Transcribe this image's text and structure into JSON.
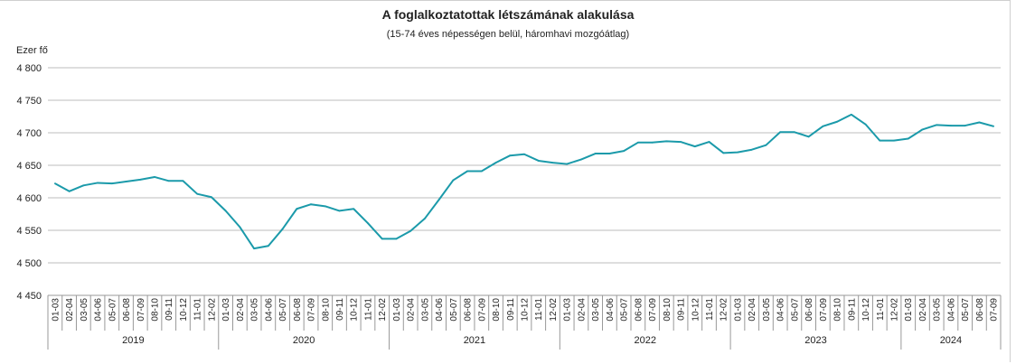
{
  "chart_data": {
    "type": "line",
    "title": "A foglalkoztatottak létszámának alakulása",
    "subtitle": "(15-74 éves népességen belül, háromhavi mozgóátlag)",
    "ylabel": "Ezer fő",
    "ylim": [
      4450,
      4800
    ],
    "yticks": [
      4450,
      4500,
      4550,
      4600,
      4650,
      4700,
      4750,
      4800
    ],
    "ytick_labels": [
      "4 450",
      "4 500",
      "4 550",
      "4 600",
      "4 650",
      "4 700",
      "4 750",
      "4 800"
    ],
    "grid": true,
    "line_color": "#1b9aaa",
    "categories": [
      "01-03",
      "02-04",
      "03-05",
      "04-06",
      "05-07",
      "06-08",
      "07-09",
      "08-10",
      "09-11",
      "10-12",
      "11-01",
      "12-02",
      "01-03",
      "02-04",
      "03-05",
      "04-06",
      "05-07",
      "06-08",
      "07-09",
      "08-10",
      "09-11",
      "10-12",
      "11-01",
      "12-02",
      "01-03",
      "02-04",
      "03-05",
      "04-06",
      "05-07",
      "06-08",
      "07-09",
      "08-10",
      "09-11",
      "10-12",
      "11-01",
      "12-02",
      "01-03",
      "02-04",
      "03-05",
      "04-06",
      "05-07",
      "06-08",
      "07-09",
      "08-10",
      "09-11",
      "10-12",
      "11-01",
      "12-02",
      "01-03",
      "02-04",
      "03-05",
      "04-06",
      "05-07",
      "06-08",
      "07-09",
      "08-10",
      "09-11",
      "10-12",
      "11-01",
      "12-02",
      "01-03",
      "02-04",
      "03-05",
      "04-06",
      "05-07",
      "06-08",
      "07-09"
    ],
    "years": [
      {
        "label": "2019",
        "count": 12
      },
      {
        "label": "2020",
        "count": 12
      },
      {
        "label": "2021",
        "count": 12
      },
      {
        "label": "2022",
        "count": 12
      },
      {
        "label": "2023",
        "count": 12
      },
      {
        "label": "2024",
        "count": 7
      }
    ],
    "values": [
      4622,
      4610,
      4619,
      4623,
      4622,
      4625,
      4628,
      4632,
      4626,
      4626,
      4606,
      4601,
      4580,
      4555,
      4522,
      4526,
      4552,
      4583,
      4590,
      4587,
      4580,
      4583,
      4561,
      4537,
      4537,
      4549,
      4568,
      4597,
      4627,
      4641,
      4641,
      4654,
      4665,
      4667,
      4657,
      4654,
      4652,
      4659,
      4668,
      4668,
      4672,
      4685,
      4685,
      4687,
      4686,
      4679,
      4686,
      4669,
      4670,
      4674,
      4681,
      4701,
      4701,
      4694,
      4710,
      4717,
      4728,
      4713,
      4688,
      4688,
      4691,
      4705,
      4712,
      4711,
      4711,
      4716,
      4710
    ]
  }
}
